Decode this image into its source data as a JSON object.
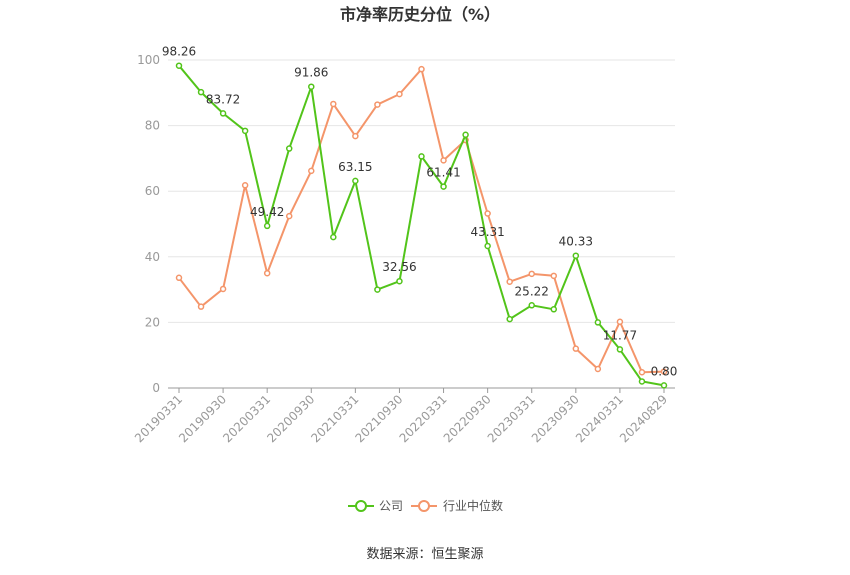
{
  "chart_data": {
    "type": "line",
    "title": "市净率历史分位（%）",
    "source": "数据来源：恒生聚源",
    "xlabel": "",
    "ylabel": "",
    "ylim": [
      0,
      100
    ],
    "yticks": [
      0,
      20,
      40,
      60,
      80,
      100
    ],
    "grid": true,
    "legend_position": "bottom",
    "x": [
      "20190331",
      "20190630",
      "20190930",
      "20191231",
      "20200331",
      "20200630",
      "20200930",
      "20201231",
      "20210331",
      "20210630",
      "20210930",
      "20211231",
      "20220331",
      "20220630",
      "20220930",
      "20221231",
      "20230331",
      "20230630",
      "20230930",
      "20231231",
      "20240331",
      "20240630",
      "20240829"
    ],
    "xtick_labels": [
      "20190331",
      "20190930",
      "20200331",
      "20200930",
      "20210331",
      "20210930",
      "20220331",
      "20220930",
      "20230331",
      "20230930",
      "20240331",
      "20240829"
    ],
    "series": [
      {
        "name": "公司",
        "color": "#52c41a",
        "values": [
          98.26,
          90.2,
          83.72,
          78.4,
          49.42,
          73.0,
          91.86,
          46.0,
          63.15,
          30.0,
          32.56,
          70.6,
          61.41,
          77.2,
          43.31,
          21.0,
          25.22,
          24.0,
          40.33,
          20.0,
          11.77,
          2.0,
          0.8
        ],
        "labels": {
          "0": "98.26",
          "2": "83.72",
          "4": "49.42",
          "6": "91.86",
          "8": "63.15",
          "10": "32.56",
          "12": "61.41",
          "14": "43.31",
          "16": "25.22",
          "18": "40.33",
          "20": "11.77",
          "22": "0.80"
        }
      },
      {
        "name": "行业中位数",
        "color": "#f4956a",
        "values": [
          33.6,
          24.8,
          30.2,
          61.8,
          35.0,
          52.4,
          66.2,
          86.6,
          76.8,
          86.4,
          89.6,
          97.2,
          69.4,
          75.6,
          53.2,
          32.4,
          34.8,
          34.2,
          12.0,
          5.8,
          20.2,
          4.8,
          5.0
        ]
      }
    ]
  }
}
